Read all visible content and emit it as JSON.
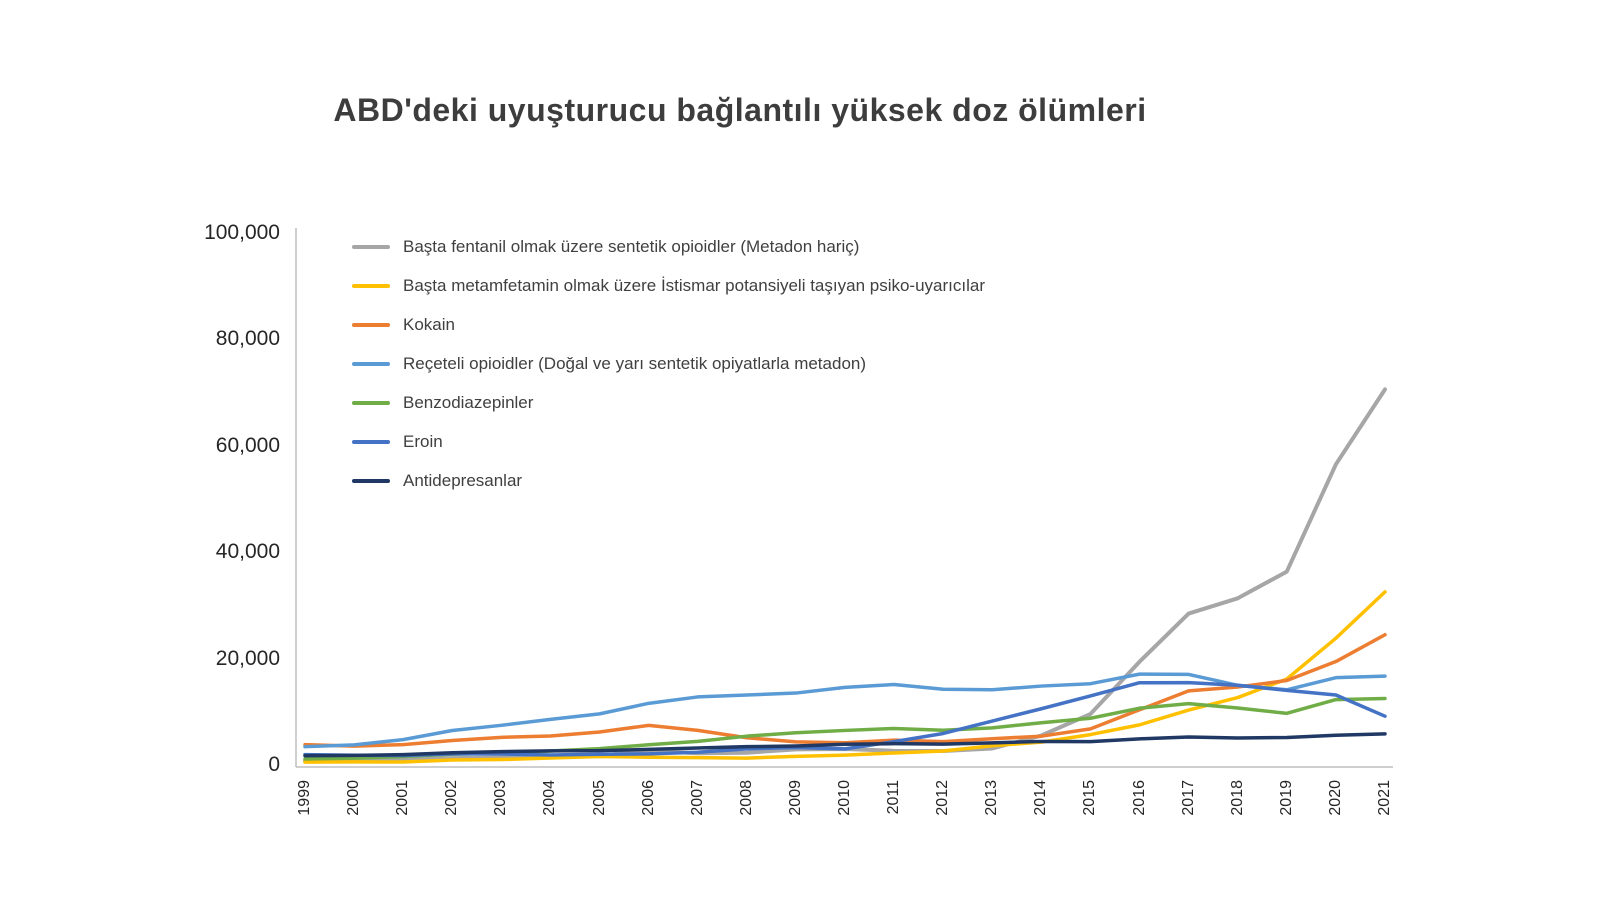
{
  "title": "ABD'deki uyuşturucu bağlantılı yüksek doz ölümleri",
  "chart_data": {
    "type": "line",
    "title": "ABD'deki uyuşturucu bağlantılı yüksek doz ölümleri",
    "x": [
      "1999",
      "2000",
      "2001",
      "2002",
      "2003",
      "2004",
      "2005",
      "2006",
      "2007",
      "2008",
      "2009",
      "2010",
      "2011",
      "2012",
      "2013",
      "2014",
      "2015",
      "2016",
      "2017",
      "2018",
      "2019",
      "2020",
      "2021"
    ],
    "ylim": [
      0,
      100000
    ],
    "yticks": [
      0,
      20000,
      40000,
      60000,
      80000,
      100000
    ],
    "ytick_labels": [
      "0",
      "20,000",
      "40,000",
      "60,000",
      "80,000",
      "100,000"
    ],
    "grid": false,
    "legend_position": "inside-top-left",
    "series": [
      {
        "name": "Başta fentanil olmak üzere sentetik opioidler (Metadon hariç)",
        "color": "#a6a6a6",
        "stroke_width": 4,
        "values": [
          730,
          782,
          957,
          1295,
          1400,
          1664,
          1742,
          2707,
          2213,
          2306,
          2946,
          3007,
          2666,
          2628,
          3105,
          5544,
          9580,
          19413,
          28466,
          31335,
          36359,
          56516,
          70601
        ]
      },
      {
        "name": "Başta metamfetamin olmak üzere İstismar potansiyeli taşıyan psiko-uyarıcılar",
        "color": "#ffc000",
        "stroke_width": 3.5,
        "values": [
          547,
          578,
          563,
          941,
          1024,
          1305,
          1608,
          1462,
          1378,
          1302,
          1632,
          1854,
          2266,
          2635,
          3627,
          4298,
          5716,
          7542,
          10333,
          12676,
          16167,
          23837,
          32537
        ]
      },
      {
        "name": "Kokain",
        "color": "#ed7d31",
        "stroke_width": 3.5,
        "values": [
          3822,
          3544,
          3833,
          4599,
          5199,
          5443,
          6208,
          7448,
          6512,
          5129,
          4350,
          4183,
          4681,
          4404,
          4944,
          5415,
          6784,
          10375,
          13942,
          14666,
          15883,
          19447,
          24486
        ]
      },
      {
        "name": "Reçeteli opioidler (Doğal ve yarı sentetik opiyatlarla metadon)",
        "color": "#5b9bd5",
        "stroke_width": 3.5,
        "values": [
          3442,
          3785,
          4770,
          6483,
          7461,
          8577,
          9612,
          11589,
          12796,
          13149,
          13523,
          14583,
          15140,
          14240,
          14145,
          14838,
          15281,
          17087,
          17029,
          14975,
          14139,
          16416,
          16706
        ]
      },
      {
        "name": "Benzodiazepinler",
        "color": "#70ad47",
        "stroke_width": 3.5,
        "values": [
          1135,
          1298,
          1594,
          2022,
          2248,
          2627,
          3084,
          3805,
          4441,
          5417,
          6069,
          6497,
          6872,
          6524,
          6973,
          7945,
          8791,
          10684,
          11537,
          10724,
          9711,
          12290,
          12499
        ]
      },
      {
        "name": "Eroin",
        "color": "#4472c4",
        "stroke_width": 3.5,
        "values": [
          1960,
          1842,
          1779,
          2089,
          2080,
          1878,
          2009,
          2088,
          2399,
          3041,
          3278,
          3036,
          4397,
          5925,
          8257,
          10574,
          12989,
          15469,
          15482,
          14996,
          14019,
          13165,
          9173
        ]
      },
      {
        "name": "Antidepresanlar",
        "color": "#203864",
        "stroke_width": 3.5,
        "values": [
          1749,
          1798,
          1957,
          2310,
          2512,
          2662,
          2697,
          2940,
          3194,
          3445,
          3565,
          3889,
          4012,
          3932,
          4161,
          4429,
          4402,
          4917,
          5269,
          5064,
          5175,
          5597,
          5859
        ]
      }
    ]
  }
}
